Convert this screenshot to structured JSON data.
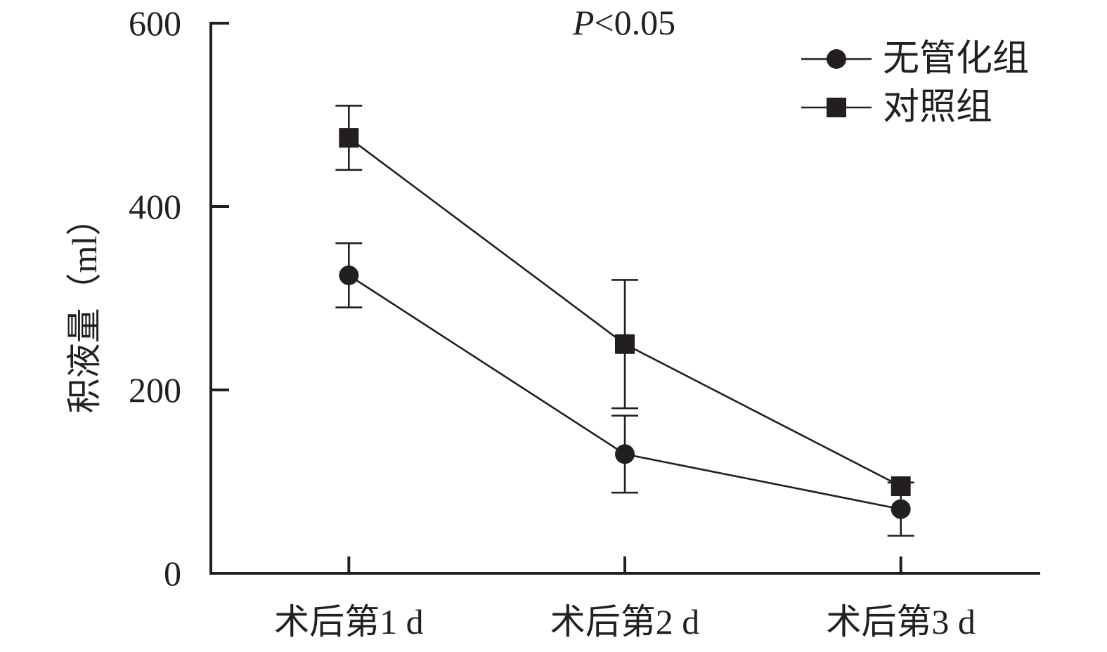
{
  "chart_data": {
    "type": "line",
    "annotation": "P<0.05",
    "ylabel": "积液量（ml）",
    "categories": [
      "术后第1 d",
      "术后第2 d",
      "术后第3 d"
    ],
    "ylim": [
      0,
      600
    ],
    "yticks": [
      0,
      200,
      400,
      600
    ],
    "grid": false,
    "legend_position": "top-right",
    "error_bars": true,
    "series": [
      {
        "name": "无管化组",
        "marker": "circle",
        "color": "#231f20",
        "values": [
          325,
          130,
          70
        ],
        "errors": [
          35,
          42,
          29
        ]
      },
      {
        "name": "对照组",
        "marker": "square",
        "color": "#231f20",
        "values": [
          475,
          250,
          95
        ],
        "errors": [
          35,
          70,
          0
        ]
      }
    ]
  }
}
